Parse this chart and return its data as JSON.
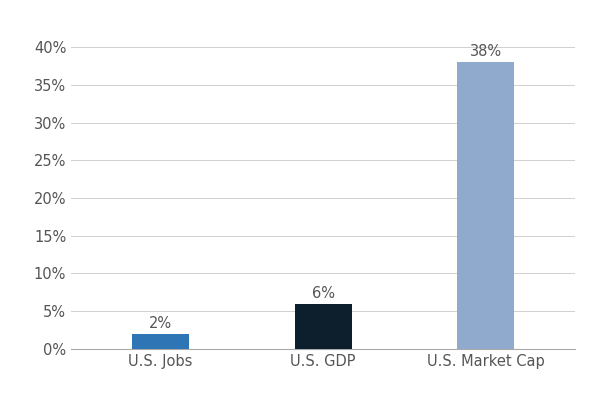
{
  "categories": [
    "U.S. Jobs",
    "U.S. GDP",
    "U.S. Market Cap"
  ],
  "values": [
    2,
    6,
    38
  ],
  "bar_colors": [
    "#2E75B6",
    "#0D1F2D",
    "#8FAACC"
  ],
  "bar_labels": [
    "2%",
    "6%",
    "38%"
  ],
  "ylim": [
    0,
    42
  ],
  "yticks": [
    0,
    5,
    10,
    15,
    20,
    25,
    30,
    35,
    40
  ],
  "ytick_labels": [
    "0%",
    "5%",
    "10%",
    "15%",
    "20%",
    "25%",
    "30%",
    "35%",
    "40%"
  ],
  "background_color": "#FFFFFF",
  "bar_width": 0.35,
  "label_fontsize": 10.5,
  "tick_fontsize": 10.5,
  "grid_color": "#D0D0D0"
}
